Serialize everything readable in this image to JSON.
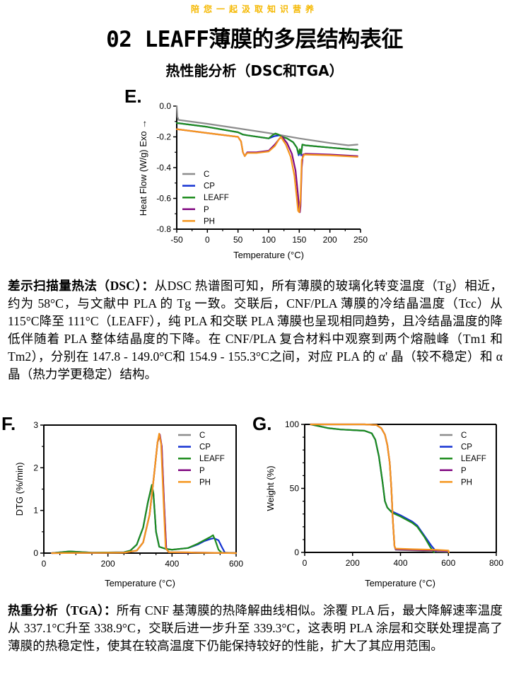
{
  "banner": "陪您一起汲取知识营养",
  "title": "02 LEAFF薄膜的多层结构表征",
  "subtitle": "热性能分析（DSC和TGA）",
  "colors": {
    "banner": "#f5b800",
    "C": "#8c8c8c",
    "CP": "#1432d2",
    "LEAFF": "#1e8c1e",
    "P": "#820a82",
    "PH": "#f5961e"
  },
  "paragraphs": {
    "dsc": {
      "heading": "差示扫描量热法（DSC）：",
      "body": "从DSC 热谱图可知，所有薄膜的玻璃化转变温度（Tg）相近，约为 58°C，与文献中 PLA 的 Tg 一致。交联后，CNF/PLA 薄膜的冷结晶温度（Tcc）从 115°C降至 111°C（LEAFF），纯 PLA 和交联 PLA 薄膜也呈现相同趋势，且冷结晶温度的降低伴随着 PLA 整体结晶度的下降。在 CNF/PLA 复合材料中观察到两个熔融峰（Tm1 和 Tm2），分别在 147.8 - 149.0°C和 154.9 - 155.3°C之间，对应 PLA 的 α' 晶（较不稳定）和 α 晶（热力学更稳定）结构。"
    },
    "tga": {
      "heading": "热重分析（TGA）：",
      "body": "所有 CNF 基薄膜的热降解曲线相似。涂覆 PLA 后，最大降解速率温度从 337.1°C升至 338.9°C，交联后进一步升至 339.3°C，这表明 PLA 涂层和交联处理提高了薄膜的热稳定性，使其在较高温度下仍能保持较好的性能，扩大了其应用范围。"
    }
  },
  "chart_data": [
    {
      "id": "E",
      "panel_label": "E.",
      "type": "line",
      "title": "",
      "xlabel": "Temperature (°C)",
      "ylabel": "Heat Flow (W/g) Exo →",
      "xlim": [
        -50,
        250
      ],
      "ylim": [
        -0.8,
        0.0
      ],
      "xticks": [
        -50,
        0,
        50,
        100,
        150,
        200,
        250
      ],
      "xtick_labels": [
        "-50",
        "0",
        "50",
        "100",
        "150",
        "200",
        "250"
      ],
      "yticks": [
        0.0,
        -0.2,
        -0.4,
        -0.6,
        -0.8
      ],
      "ytick_labels": [
        "0.0",
        "-0.2",
        "-0.4",
        "-0.6",
        "-0.8"
      ],
      "grid": false,
      "legend": "bottom-left",
      "series": [
        {
          "name": "C",
          "x": [
            -50,
            -49,
            -47,
            0,
            50,
            100,
            150,
            200,
            230,
            245
          ],
          "y": [
            0.0,
            -0.07,
            -0.09,
            -0.115,
            -0.145,
            -0.175,
            -0.21,
            -0.24,
            -0.255,
            -0.25
          ]
        },
        {
          "name": "CP",
          "x": [
            -50,
            0,
            50,
            58,
            65,
            100,
            110,
            118,
            122,
            130,
            140,
            146,
            149,
            151,
            153,
            155,
            160,
            200,
            245
          ],
          "y": [
            -0.11,
            -0.135,
            -0.17,
            -0.185,
            -0.19,
            -0.21,
            -0.195,
            -0.19,
            -0.2,
            -0.21,
            -0.235,
            -0.27,
            -0.32,
            -0.29,
            -0.32,
            -0.25,
            -0.255,
            -0.27,
            -0.285
          ]
        },
        {
          "name": "LEAFF",
          "x": [
            -50,
            0,
            50,
            58,
            65,
            100,
            106,
            111,
            116,
            122,
            130,
            140,
            146,
            149,
            151,
            153,
            155,
            160,
            200,
            245
          ],
          "y": [
            -0.11,
            -0.135,
            -0.17,
            -0.185,
            -0.19,
            -0.21,
            -0.19,
            -0.178,
            -0.185,
            -0.2,
            -0.21,
            -0.235,
            -0.27,
            -0.31,
            -0.28,
            -0.31,
            -0.25,
            -0.255,
            -0.27,
            -0.285
          ]
        },
        {
          "name": "P",
          "x": [
            -50,
            0,
            50,
            55,
            58,
            61,
            65,
            80,
            100,
            110,
            118,
            122,
            130,
            138,
            144,
            148,
            150,
            151,
            152,
            154,
            156,
            160,
            200,
            245
          ],
          "y": [
            -0.15,
            -0.175,
            -0.2,
            -0.23,
            -0.3,
            -0.325,
            -0.3,
            -0.3,
            -0.29,
            -0.25,
            -0.21,
            -0.2,
            -0.24,
            -0.31,
            -0.42,
            -0.58,
            -0.68,
            -0.69,
            -0.65,
            -0.4,
            -0.315,
            -0.31,
            -0.315,
            -0.325
          ]
        },
        {
          "name": "PH",
          "x": [
            -50,
            0,
            50,
            55,
            58,
            61,
            65,
            80,
            100,
            110,
            117,
            120,
            128,
            136,
            142,
            146,
            148,
            150,
            152,
            154,
            158,
            200,
            245
          ],
          "y": [
            -0.15,
            -0.175,
            -0.2,
            -0.23,
            -0.3,
            -0.325,
            -0.305,
            -0.305,
            -0.295,
            -0.26,
            -0.215,
            -0.2,
            -0.25,
            -0.33,
            -0.45,
            -0.6,
            -0.68,
            -0.69,
            -0.6,
            -0.35,
            -0.315,
            -0.32,
            -0.33
          ]
        }
      ]
    },
    {
      "id": "F",
      "panel_label": "F.",
      "type": "line",
      "title": "",
      "xlabel": "Temperature (°C)",
      "ylabel": "DTG (%/min)",
      "xlim": [
        0,
        600
      ],
      "ylim": [
        0,
        3
      ],
      "xticks": [
        0,
        200,
        400,
        600
      ],
      "xtick_labels": [
        "0",
        "200",
        "400",
        "600"
      ],
      "yticks": [
        0,
        1,
        2,
        3
      ],
      "ytick_labels": [
        "0",
        "1",
        "2",
        "3"
      ],
      "grid": false,
      "legend": "top-right",
      "series": [
        {
          "name": "C",
          "x": [
            25,
            250,
            290,
            310,
            330,
            345,
            355,
            362,
            368,
            375,
            382,
            390,
            600
          ],
          "y": [
            0,
            0.01,
            0.06,
            0.25,
            0.9,
            1.9,
            2.6,
            2.75,
            2.5,
            1.2,
            0.1,
            0.02,
            0.0
          ]
        },
        {
          "name": "CP",
          "x": [
            25,
            80,
            150,
            250,
            270,
            290,
            310,
            325,
            337,
            342,
            350,
            360,
            380,
            400,
            450,
            480,
            500,
            520,
            530,
            545,
            555,
            565,
            600
          ],
          "y": [
            0,
            0.04,
            0.01,
            0.02,
            0.06,
            0.2,
            0.6,
            1.2,
            1.58,
            1.4,
            0.5,
            0.15,
            0.1,
            0.08,
            0.12,
            0.2,
            0.28,
            0.33,
            0.35,
            0.3,
            0.15,
            0.01,
            0.0
          ]
        },
        {
          "name": "LEAFF",
          "x": [
            25,
            80,
            150,
            250,
            270,
            290,
            310,
            325,
            337,
            342,
            350,
            360,
            380,
            400,
            450,
            480,
            500,
            520,
            528,
            535,
            545,
            555,
            600
          ],
          "y": [
            0,
            0.04,
            0.01,
            0.02,
            0.06,
            0.2,
            0.6,
            1.2,
            1.6,
            1.4,
            0.5,
            0.15,
            0.1,
            0.08,
            0.12,
            0.22,
            0.3,
            0.38,
            0.42,
            0.3,
            0.08,
            0.01,
            0.0
          ]
        },
        {
          "name": "P",
          "x": [
            25,
            250,
            290,
            310,
            330,
            345,
            355,
            362,
            368,
            375,
            382,
            390,
            600
          ],
          "y": [
            0,
            0.01,
            0.06,
            0.25,
            0.9,
            1.9,
            2.6,
            2.78,
            2.5,
            1.2,
            0.1,
            0.02,
            0.0
          ]
        },
        {
          "name": "PH",
          "x": [
            25,
            250,
            290,
            310,
            330,
            345,
            355,
            360,
            366,
            373,
            380,
            390,
            450,
            470,
            600
          ],
          "y": [
            0,
            0.01,
            0.06,
            0.25,
            0.9,
            1.9,
            2.6,
            2.8,
            2.55,
            1.3,
            0.12,
            0.02,
            0.02,
            0.01,
            0.0
          ]
        }
      ]
    },
    {
      "id": "G",
      "panel_label": "G.",
      "type": "line",
      "title": "",
      "xlabel": "Temperature (°C)",
      "ylabel": "Weight (%)",
      "xlim": [
        0,
        800
      ],
      "ylim": [
        0,
        100
      ],
      "xticks": [
        0,
        200,
        400,
        600,
        800
      ],
      "xtick_labels": [
        "0",
        "200",
        "400",
        "600",
        "800"
      ],
      "yticks": [
        0,
        50,
        100
      ],
      "ytick_labels": [
        "0",
        "50",
        "100"
      ],
      "grid": false,
      "legend": "top-right",
      "series": [
        {
          "name": "C",
          "x": [
            25,
            250,
            300,
            320,
            335,
            345,
            355,
            362,
            368,
            375,
            380,
            450,
            550,
            600
          ],
          "y": [
            100,
            100,
            99.5,
            97,
            92,
            84,
            70,
            50,
            25,
            5,
            2,
            1.5,
            0.8,
            0.5
          ]
        },
        {
          "name": "CP",
          "x": [
            25,
            100,
            150,
            250,
            280,
            295,
            310,
            325,
            335,
            345,
            355,
            365,
            400,
            450,
            470,
            500,
            530,
            548
          ],
          "y": [
            100,
            97,
            96,
            95,
            93,
            88,
            75,
            55,
            40,
            35,
            33,
            32,
            29,
            24,
            21,
            13,
            5,
            1
          ]
        },
        {
          "name": "LEAFF",
          "x": [
            25,
            100,
            150,
            250,
            280,
            295,
            310,
            325,
            335,
            345,
            355,
            365,
            400,
            450,
            470,
            500,
            525,
            540
          ],
          "y": [
            100,
            97,
            96,
            95,
            93,
            88,
            75,
            55,
            40,
            35,
            33,
            31,
            28,
            23,
            20,
            12,
            4,
            0
          ]
        },
        {
          "name": "P",
          "x": [
            25,
            250,
            300,
            320,
            335,
            345,
            355,
            362,
            368,
            375,
            380,
            450,
            550,
            600
          ],
          "y": [
            100,
            100,
            99.5,
            97,
            92,
            84,
            70,
            50,
            25,
            5,
            2.5,
            2,
            1.5,
            1
          ]
        },
        {
          "name": "PH",
          "x": [
            25,
            250,
            300,
            320,
            335,
            345,
            355,
            362,
            368,
            375,
            380,
            450,
            550,
            600,
            602
          ],
          "y": [
            100,
            100,
            99.5,
            97,
            92,
            84,
            70,
            50,
            25,
            5,
            3,
            2.5,
            2,
            1.5,
            0
          ]
        }
      ]
    }
  ]
}
